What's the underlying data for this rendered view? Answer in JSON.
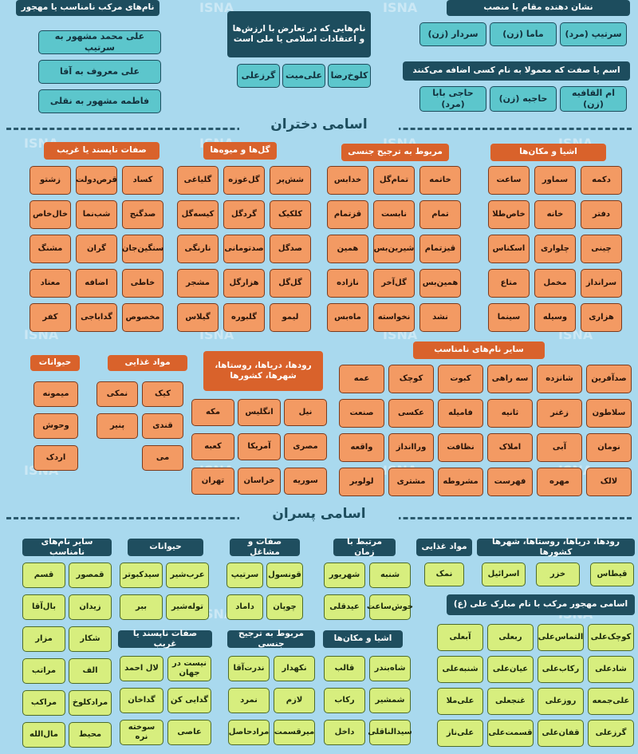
{
  "watermark": "ISNA",
  "top": {
    "groups": [
      {
        "title": "نام‌های مرکب نامناسب یا مهجور",
        "items": [
          "علی محمد مشهور به سرتیپ",
          "علی معروف به آقا",
          "فاطمه مشهور به نقلی"
        ]
      },
      {
        "title": "نام‌هایی که در تعارض با ارزش‌ها و اعتقادات اسلامی یا ملی است",
        "items": [
          "کلوخ‌رضا",
          "علی‌میت",
          "گرزعلی"
        ]
      },
      {
        "title": "نشان دهنده مقام یا منصب",
        "items": [
          "سرتیپ (مرد)",
          "ماما (زن)",
          "سردار (زن)"
        ]
      },
      {
        "title": "اسم یا صفت که معمولا به نام کسی اضافه می‌کنند",
        "items": [
          "ام القافیه (زن)",
          "حاجیه (زن)",
          "حاجی بابا (مرد)"
        ]
      }
    ]
  },
  "girls": {
    "heading": "اسامی دختران",
    "groups": [
      {
        "title": "اشیا و مکان‌ها",
        "items": [
          "دکمه",
          "سماور",
          "ساعت",
          "دفتر",
          "خانه",
          "خاص‌طلا",
          "چینی",
          "چلواری",
          "اسکناس",
          "سرانداز",
          "مخمل",
          "متاع",
          "هزاری",
          "وسیله",
          "سینما"
        ]
      },
      {
        "title": "مربوط به ترجیح جنسی",
        "items": [
          "خاتمه",
          "تمام‌گل",
          "خدابس",
          "تمام",
          "نابست",
          "قزتمام",
          "قیزتمام",
          "شیرین‌بس",
          "همین",
          "همین‌بس",
          "گل‌آخر",
          "نازاده",
          "نشد",
          "نخواسته",
          "ماه‌بس"
        ]
      },
      {
        "title": "گل‌ها و میوه‌ها",
        "items": [
          "شش‌پر",
          "گل‌غوزه",
          "گلیاغی",
          "کلکیک",
          "گردگل",
          "کیسه‌گل",
          "صدگل",
          "صدتومانی",
          "نارنگی",
          "گل‌گل",
          "هزارگل",
          "مشجر",
          "لیمو",
          "گلبوره",
          "گیلاس"
        ]
      },
      {
        "title": "صفات ناپسند یا غریب",
        "items": [
          "کساد",
          "قرص‌دولت",
          "زشتو",
          "صدگنج",
          "شب‌نما",
          "خال‌خاص",
          "سنگین‌جان",
          "گران",
          "مشنگ",
          "خاطی",
          "اضافه",
          "معتاد",
          "مخصوص",
          "گداباجی",
          "کفر"
        ]
      },
      {
        "title": "حیوانات",
        "items": [
          "میمونه",
          "وحوش",
          "اردک"
        ]
      },
      {
        "title": "مواد غذایی",
        "items": [
          "کیک",
          "نمکی",
          "قندی",
          "پنیر",
          "می"
        ]
      },
      {
        "title": "رودها، دریاها، روستاها، شهرها، کشورها",
        "items": [
          "نیل",
          "انگلیس",
          "مکه",
          "مصری",
          "آمریکا",
          "کعبه",
          "سوریه",
          "خراسان",
          "تهران"
        ]
      },
      {
        "title": "سایر نام‌های نامناسب",
        "items": [
          "صدآفرین",
          "شانزده",
          "سه راهی",
          "کبوت",
          "کوچک",
          "عمه",
          "سلاطون",
          "زغنر",
          "ثانیه",
          "فامیله",
          "عکسی",
          "صنعت",
          "نومان",
          "آبی",
          "املاک",
          "نظافت",
          "وراانداز",
          "واقعه",
          "لالک",
          "مهره",
          "فهرست",
          "مشروطه",
          "مشتری",
          "لولوبر"
        ]
      }
    ]
  },
  "boys": {
    "heading": "اسامی پسران",
    "groups": [
      {
        "title": "رودها، دریاها، روستاها، شهرها کشورها",
        "items": [
          "قیطاس",
          "خزر",
          "اسرائیل"
        ]
      },
      {
        "title": "مواد غذایی",
        "items": [
          "نمک"
        ]
      },
      {
        "title": "مرتبط با زمان",
        "items": [
          "شنبه",
          "شهریور",
          "خوش‌ساعت",
          "عیدقلی"
        ]
      },
      {
        "title": "صفات و مشاغل",
        "items": [
          "قونسول",
          "سرتیپ",
          "چوپان",
          "داماد"
        ]
      },
      {
        "title": "حیوانات",
        "items": [
          "عرب‌شیر",
          "سیدکبوتر",
          "توله‌شیر",
          "ببر"
        ]
      },
      {
        "title": "سایر نام‌های نامناسب",
        "items": [
          "قمصور",
          "قسم",
          "زیدان",
          "بال‌آقا",
          "شکار",
          "مزار",
          "الف",
          "مراتب",
          "مرادکلوخ",
          "مراکب",
          "محیط",
          "مال‌الله"
        ]
      },
      {
        "title": "اسامی مهجور مرکب با نام مبارک علی (ع)",
        "items": [
          "کوچک‌علی",
          "التماس‌علی",
          "ربعلی",
          "آبعلی",
          "شادعلی",
          "رکاب‌علی",
          "عیان‌علی",
          "شنبه‌علی",
          "علی‌جمعه",
          "روزعلی",
          "غنجعلی",
          "علی‌ملا",
          "گرزعلی",
          "قفان‌علی",
          "قسمت‌علی",
          "علی‌ناز"
        ]
      },
      {
        "title": "اشیا و مکان‌ها",
        "items": [
          "شاه‌بندر",
          "قالب",
          "شمشیر",
          "رکاب",
          "سیدالناقلی",
          "داخل"
        ]
      },
      {
        "title": "مربوط به ترجیح جنسی",
        "items": [
          "نکهدار",
          "ندرت‌آقا",
          "لازم",
          "نمرد",
          "میرقسمت",
          "مرادحاصل"
        ]
      },
      {
        "title": "صفات ناپسند یا غریب",
        "items": [
          "نیست در جهان",
          "لال احمد",
          "گدایی کن",
          "گداخان",
          "عاصی",
          "سوخته نره"
        ]
      }
    ]
  }
}
